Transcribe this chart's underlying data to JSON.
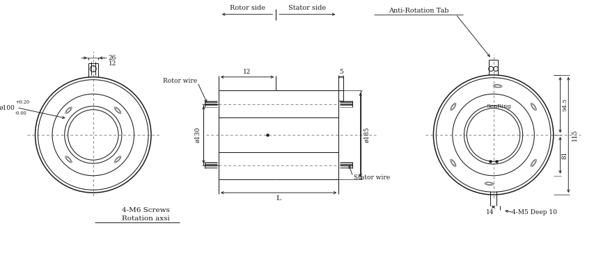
{
  "bg_color": "#ffffff",
  "line_color": "#1a1a1a",
  "dim_color": "#1a1a1a",
  "dashed_color": "#666666",
  "fig_width": 8.76,
  "fig_height": 3.87,
  "labels": {
    "rotor_side": "Rotor side",
    "stator_side": "Stator side",
    "anti_rotation": "Anti-Rotation Tab",
    "rotor_wire": "Rotor wire",
    "stator_wire": "Stator wire",
    "m6_screws": "4-M6 Screws",
    "rotation_axsi": "Rotation axsi",
    "m5_deep": "4-M5 Deep 10",
    "senring": "SenRing",
    "phi_100": "ø100",
    "tol_plus": "+0.20",
    "tol_minus": "-0.00",
    "phi_130": "ø130",
    "phi_185": "ø185",
    "dim_26": "26",
    "dim_12_top": "12",
    "dim_12_mid": "12",
    "dim_5": "5",
    "dim_L": "L",
    "dim_14": "14",
    "dim_94_5": "94.5",
    "dim_115": "115",
    "dim_81": "81"
  }
}
